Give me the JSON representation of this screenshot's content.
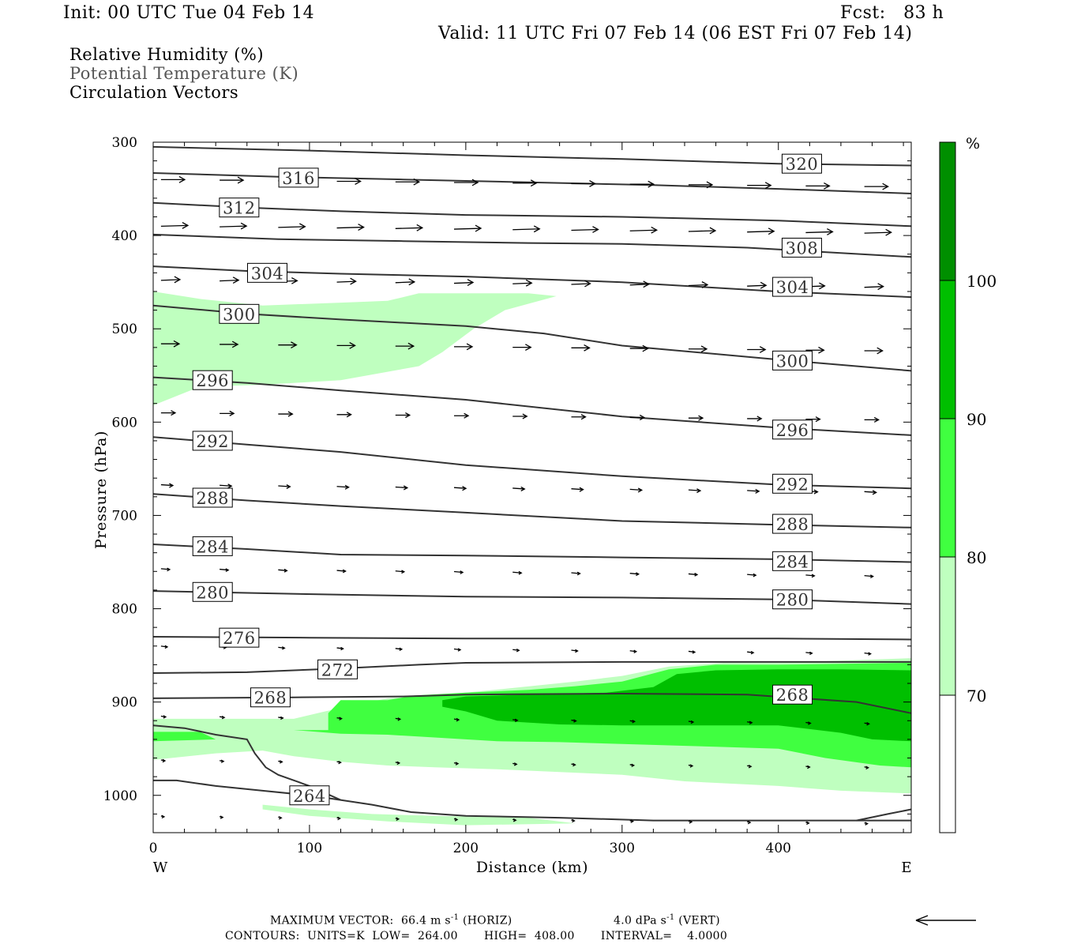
{
  "header": {
    "init": "Init: 00 UTC Tue 04 Feb 14",
    "fcst": "Fcst:   83 h",
    "valid": "Valid: 11 UTC Fri 07 Feb 14 (06 EST Fri 07 Feb 14)"
  },
  "legend_titles": [
    "Relative Humidity (%)",
    "Potential Temperature (K)",
    "Circulation Vectors"
  ],
  "footer": {
    "max_vector_prefix": "MAXIMUM VECTOR:  66.4 m s",
    "horiz_tail": " (HORIZ)",
    "vert_value": "4.0 dPa s",
    "vert_tail": " (VERT)",
    "exponent": "-1",
    "contours": "CONTOURS:  UNITS=K  LOW=  264.00       HIGH=  408.00       INTERVAL=    4.0000"
  },
  "chart_data": {
    "type": "cross-section",
    "xlabel": "Distance (km)",
    "ylabel": "Pressure (hPa)",
    "xlim": [
      0,
      485
    ],
    "ylim": [
      1040,
      300
    ],
    "x_ticks": [
      0,
      100,
      200,
      300,
      400
    ],
    "y_ticks": [
      300,
      400,
      500,
      600,
      700,
      800,
      900,
      1000
    ],
    "end_labels": {
      "left": "W",
      "right": "E"
    },
    "colorbar": {
      "unit": "%",
      "levels": [
        70,
        80,
        90,
        100
      ],
      "colors": {
        "lt70": "#ffffff",
        "70-80": "#bfffbf",
        "80-90": "#40ff40",
        "90-100": "#00bf00",
        "gt100": "#008f00"
      }
    },
    "rh_regions": [
      {
        "range": "70-80",
        "polygon": [
          [
            0,
            460
          ],
          [
            30,
            468
          ],
          [
            70,
            475
          ],
          [
            120,
            472
          ],
          [
            150,
            470
          ],
          [
            170,
            462
          ],
          [
            205,
            462
          ],
          [
            240,
            462
          ],
          [
            258,
            465
          ],
          [
            225,
            480
          ],
          [
            205,
            500
          ],
          [
            185,
            525
          ],
          [
            170,
            540
          ],
          [
            120,
            555
          ],
          [
            70,
            560
          ],
          [
            30,
            562
          ],
          [
            0,
            582
          ]
        ]
      },
      {
        "range": "70-80",
        "polygon": [
          [
            0,
            918
          ],
          [
            40,
            918
          ],
          [
            70,
            918
          ],
          [
            90,
            918
          ],
          [
            110,
            910
          ],
          [
            150,
            896
          ],
          [
            175,
            893
          ],
          [
            200,
            890
          ],
          [
            230,
            885
          ],
          [
            270,
            878
          ],
          [
            300,
            872
          ],
          [
            330,
            862
          ],
          [
            365,
            858
          ],
          [
            400,
            858
          ],
          [
            485,
            853
          ],
          [
            485,
            998
          ],
          [
            440,
            995
          ],
          [
            400,
            990
          ],
          [
            340,
            985
          ],
          [
            300,
            978
          ],
          [
            260,
            975
          ],
          [
            220,
            972
          ],
          [
            180,
            970
          ],
          [
            150,
            968
          ],
          [
            120,
            964
          ],
          [
            90,
            958
          ],
          [
            70,
            952
          ],
          [
            40,
            955
          ],
          [
            0,
            962
          ]
        ]
      },
      {
        "range": "70-80",
        "polygon": [
          [
            70,
            1010
          ],
          [
            100,
            1015
          ],
          [
            140,
            1020
          ],
          [
            180,
            1022
          ],
          [
            240,
            1024
          ],
          [
            270,
            1030
          ],
          [
            200,
            1032
          ],
          [
            150,
            1028
          ],
          [
            100,
            1022
          ],
          [
            70,
            1015
          ]
        ]
      },
      {
        "range": "80-90",
        "polygon": [
          [
            0,
            932
          ],
          [
            30,
            932
          ],
          [
            40,
            940
          ],
          [
            0,
            942
          ]
        ]
      },
      {
        "range": "80-90",
        "polygon": [
          [
            90,
            930
          ],
          [
            112,
            930
          ],
          [
            112,
            912
          ],
          [
            120,
            898
          ],
          [
            150,
            898
          ],
          [
            167,
            893
          ],
          [
            200,
            890
          ],
          [
            240,
            887
          ],
          [
            270,
            883
          ],
          [
            300,
            878
          ],
          [
            330,
            865
          ],
          [
            360,
            860
          ],
          [
            400,
            860
          ],
          [
            485,
            858
          ],
          [
            485,
            970
          ],
          [
            465,
            968
          ],
          [
            430,
            960
          ],
          [
            400,
            950
          ],
          [
            360,
            948
          ],
          [
            300,
            945
          ],
          [
            260,
            943
          ],
          [
            220,
            942
          ],
          [
            180,
            938
          ],
          [
            150,
            935
          ],
          [
            120,
            934
          ]
        ]
      },
      {
        "range": "90-100",
        "polygon": [
          [
            185,
            898
          ],
          [
            200,
            894
          ],
          [
            240,
            892
          ],
          [
            290,
            890
          ],
          [
            320,
            884
          ],
          [
            335,
            870
          ],
          [
            360,
            866
          ],
          [
            400,
            865
          ],
          [
            440,
            865
          ],
          [
            485,
            866
          ],
          [
            485,
            942
          ],
          [
            460,
            940
          ],
          [
            440,
            933
          ],
          [
            400,
            925
          ],
          [
            360,
            925
          ],
          [
            300,
            925
          ],
          [
            260,
            924
          ],
          [
            220,
            920
          ],
          [
            200,
            910
          ],
          [
            185,
            905
          ]
        ]
      }
    ],
    "theta_contours": [
      {
        "label": "264",
        "points": [
          [
            0,
            984
          ],
          [
            15,
            984
          ],
          [
            40,
            990
          ],
          [
            70,
            995
          ],
          [
            100,
            1000
          ],
          [
            140,
            1010
          ],
          [
            165,
            1018
          ],
          [
            200,
            1022
          ],
          [
            260,
            1024
          ],
          [
            320,
            1027
          ],
          [
            400,
            1027
          ],
          [
            450,
            1027
          ],
          [
            485,
            1027
          ]
        ],
        "label_at": [
          100,
          1000
        ]
      },
      {
        "label": "264",
        "points": [
          [
            0,
            925
          ],
          [
            20,
            928
          ],
          [
            40,
            935
          ],
          [
            60,
            940
          ],
          [
            65,
            955
          ],
          [
            72,
            970
          ],
          [
            80,
            978
          ],
          [
            100,
            990
          ],
          [
            120,
            1005
          ]
        ],
        "label_at": null
      },
      {
        "label": "264",
        "points": [
          [
            450,
            1027
          ],
          [
            470,
            1020
          ],
          [
            485,
            1015
          ]
        ],
        "label_at": null
      },
      {
        "label": "268",
        "points": [
          [
            0,
            896
          ],
          [
            90,
            895
          ],
          [
            160,
            894
          ],
          [
            200,
            892
          ],
          [
            300,
            891
          ],
          [
            380,
            892
          ],
          [
            450,
            900
          ],
          [
            485,
            912
          ]
        ],
        "label_at": [
          75,
          895
        ]
      },
      {
        "label": "272",
        "points": [
          [
            0,
            869
          ],
          [
            60,
            868
          ],
          [
            120,
            864
          ],
          [
            170,
            860
          ],
          [
            200,
            858
          ],
          [
            300,
            857
          ],
          [
            400,
            857
          ],
          [
            485,
            857
          ]
        ],
        "label_at": [
          118,
          865
        ]
      },
      {
        "label": "276",
        "points": [
          [
            0,
            830
          ],
          [
            100,
            831
          ],
          [
            200,
            832
          ],
          [
            300,
            832
          ],
          [
            400,
            832
          ],
          [
            485,
            833
          ]
        ],
        "label_at": [
          55,
          831
        ]
      },
      {
        "label": "280",
        "points": [
          [
            0,
            781
          ],
          [
            60,
            783
          ],
          [
            120,
            785
          ],
          [
            200,
            787
          ],
          [
            300,
            788
          ],
          [
            400,
            790
          ],
          [
            485,
            795
          ]
        ],
        "label_at": [
          38,
          782
        ]
      },
      {
        "label": "284",
        "points": [
          [
            0,
            731
          ],
          [
            60,
            736
          ],
          [
            120,
            742
          ],
          [
            200,
            743
          ],
          [
            300,
            745
          ],
          [
            400,
            747
          ],
          [
            485,
            750
          ]
        ],
        "label_at": [
          38,
          733
        ]
      },
      {
        "label": "288",
        "points": [
          [
            0,
            677
          ],
          [
            60,
            684
          ],
          [
            120,
            690
          ],
          [
            200,
            697
          ],
          [
            300,
            706
          ],
          [
            400,
            710
          ],
          [
            485,
            713
          ]
        ],
        "label_at": [
          38,
          681
        ]
      },
      {
        "label": "292",
        "points": [
          [
            0,
            616
          ],
          [
            60,
            624
          ],
          [
            120,
            632
          ],
          [
            200,
            646
          ],
          [
            300,
            658
          ],
          [
            400,
            667
          ],
          [
            485,
            671
          ]
        ],
        "label_at": [
          38,
          620
        ]
      },
      {
        "label": "296",
        "points": [
          [
            0,
            552
          ],
          [
            60,
            558
          ],
          [
            120,
            566
          ],
          [
            200,
            576
          ],
          [
            300,
            594
          ],
          [
            400,
            606
          ],
          [
            485,
            614
          ]
        ],
        "label_at": [
          38,
          555
        ]
      },
      {
        "label": "300",
        "points": [
          [
            0,
            475
          ],
          [
            60,
            484
          ],
          [
            120,
            490
          ],
          [
            200,
            497
          ],
          [
            250,
            505
          ],
          [
            300,
            518
          ],
          [
            400,
            533
          ],
          [
            485,
            545
          ]
        ],
        "label_at": [
          55,
          484
        ]
      },
      {
        "label": "304",
        "points": [
          [
            0,
            433
          ],
          [
            60,
            438
          ],
          [
            120,
            441
          ],
          [
            200,
            444
          ],
          [
            300,
            450
          ],
          [
            400,
            460
          ],
          [
            485,
            466
          ]
        ],
        "label_at": [
          73,
          440
        ]
      },
      {
        "label": "308",
        "points": [
          [
            0,
            399
          ],
          [
            80,
            404
          ],
          [
            160,
            406
          ],
          [
            240,
            408
          ],
          [
            300,
            409
          ],
          [
            380,
            413
          ],
          [
            485,
            423
          ]
        ],
        "label_at": null
      },
      {
        "label": "312",
        "points": [
          [
            0,
            365
          ],
          [
            60,
            370
          ],
          [
            120,
            374
          ],
          [
            200,
            378
          ],
          [
            300,
            380
          ],
          [
            400,
            384
          ],
          [
            485,
            390
          ]
        ],
        "label_at": [
          55,
          370
        ]
      },
      {
        "label": "316",
        "points": [
          [
            0,
            333
          ],
          [
            80,
            337
          ],
          [
            160,
            340
          ],
          [
            240,
            343
          ],
          [
            320,
            346
          ],
          [
            400,
            350
          ],
          [
            485,
            355
          ]
        ],
        "label_at": [
          93,
          338
        ]
      },
      {
        "label": "320",
        "points": [
          [
            0,
            305
          ],
          [
            100,
            309
          ],
          [
            200,
            314
          ],
          [
            300,
            318
          ],
          [
            400,
            323
          ],
          [
            485,
            325
          ]
        ],
        "label_at": null
      }
    ],
    "extra_labels": [
      {
        "text": "320",
        "at": [
          415,
          323
        ]
      },
      {
        "text": "308",
        "at": [
          415,
          413
        ]
      },
      {
        "text": "304",
        "at": [
          409,
          455
        ]
      },
      {
        "text": "300",
        "at": [
          409,
          534
        ]
      },
      {
        "text": "296",
        "at": [
          409,
          608
        ]
      },
      {
        "text": "292",
        "at": [
          409,
          666
        ]
      },
      {
        "text": "288",
        "at": [
          409,
          709
        ]
      },
      {
        "text": "284",
        "at": [
          409,
          749
        ]
      },
      {
        "text": "280",
        "at": [
          409,
          790
        ]
      },
      {
        "text": "268",
        "at": [
          409,
          892
        ]
      }
    ],
    "vector_rows": [
      {
        "p": 340,
        "len": 30,
        "dy": 0
      },
      {
        "p": 390,
        "len": 34,
        "dy": -1
      },
      {
        "p": 448,
        "len": 24,
        "dy": -1
      },
      {
        "p": 516,
        "len": 23,
        "dy": 0
      },
      {
        "p": 590,
        "len": 18,
        "dy": 0
      },
      {
        "p": 667,
        "len": 15,
        "dy": 1
      },
      {
        "p": 757,
        "len": 11,
        "dy": 1
      },
      {
        "p": 840,
        "len": 8,
        "dy": 1
      },
      {
        "p": 915,
        "len": 6,
        "dy": 1
      },
      {
        "p": 962,
        "len": 5,
        "dy": 1
      },
      {
        "p": 1022,
        "len": 4,
        "dy": 1
      }
    ]
  }
}
